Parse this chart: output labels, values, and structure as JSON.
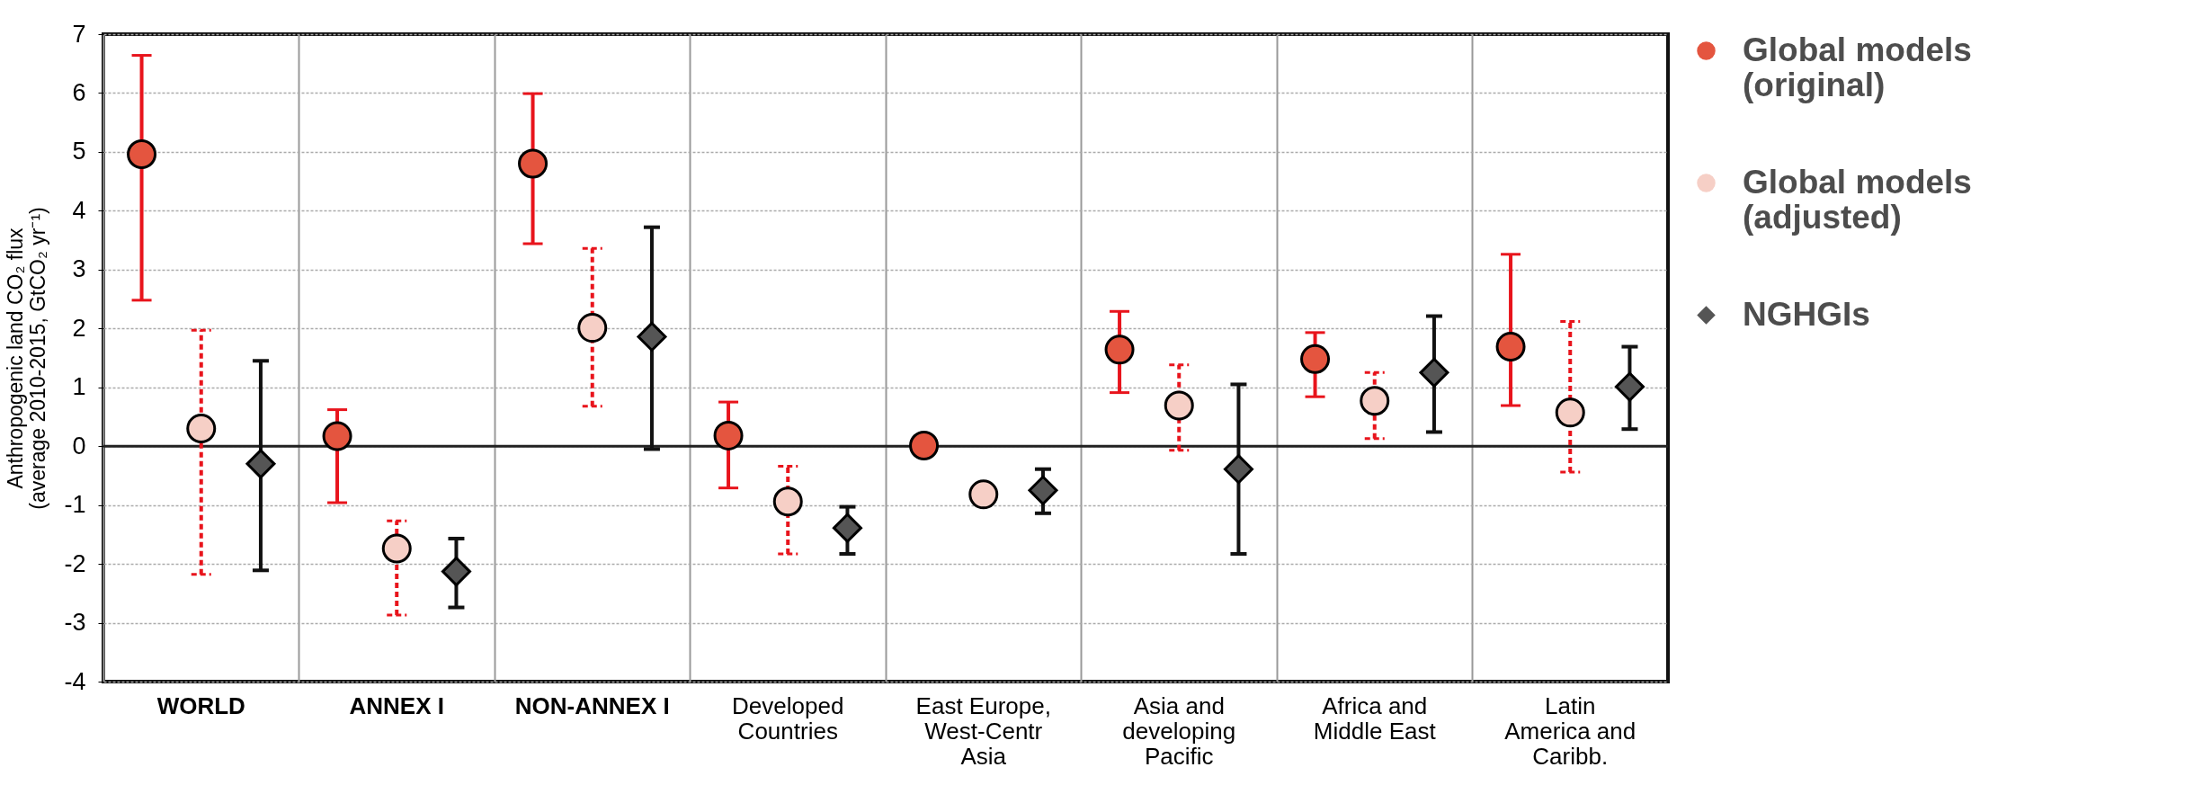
{
  "chart_data": {
    "type": "scatter",
    "ylabel": "Anthropogenic land CO₂ flux (average 2010-2015, GtCO₂ yr⁻¹)",
    "categories": [
      "WORLD",
      "ANNEX I",
      "NON-ANNEX I",
      "Developed Countries",
      "East Europe, West-Centr Asia",
      "Asia and developing Pacific",
      "Africa and Middle East",
      "Latin America and Caribb."
    ],
    "series": [
      {
        "name": "Global models (original)",
        "color": "#e4553f",
        "marker": "circle",
        "line_style": "solid",
        "values": [
          4.96,
          0.17,
          4.8,
          0.18,
          0.01,
          1.64,
          1.48,
          1.69
        ],
        "errors": [
          [
            2.48,
            6.64
          ],
          [
            -0.96,
            0.62
          ],
          [
            3.44,
            5.99
          ],
          [
            -0.71,
            0.75
          ],
          null,
          [
            0.91,
            2.29
          ],
          [
            0.84,
            1.93
          ],
          [
            0.69,
            3.26
          ]
        ]
      },
      {
        "name": "Global models (adjusted)",
        "color": "#f6cfc6",
        "marker": "circle",
        "line_style": "dashed",
        "values": [
          0.3,
          -1.74,
          2.01,
          -0.94,
          -0.82,
          0.69,
          0.77,
          0.57
        ],
        "errors": [
          [
            -2.18,
            1.97
          ],
          [
            -2.87,
            -1.27
          ],
          [
            0.68,
            3.36
          ],
          [
            -1.83,
            -0.34
          ],
          null,
          [
            -0.07,
            1.38
          ],
          [
            0.13,
            1.25
          ],
          [
            -0.44,
            2.12
          ]
        ]
      },
      {
        "name": "NGHGIs",
        "color": "#555555",
        "marker": "diamond",
        "line_style": "solid",
        "values": [
          -0.3,
          -2.13,
          1.86,
          -1.39,
          -0.75,
          -0.39,
          1.25,
          1.01
        ],
        "errors": [
          [
            -2.11,
            1.45
          ],
          [
            -2.74,
            -1.57
          ],
          [
            -0.05,
            3.72
          ],
          [
            -1.83,
            -1.03
          ],
          [
            -1.14,
            -0.39
          ],
          [
            -1.83,
            1.05
          ],
          [
            0.24,
            2.21
          ],
          [
            0.29,
            1.69
          ]
        ]
      }
    ],
    "ylim": [
      -4,
      7
    ],
    "yticks": [
      -4,
      -3,
      -2,
      -1,
      0,
      1,
      2,
      3,
      4,
      5,
      6,
      7
    ],
    "ref_lines": [
      {
        "axis": "y",
        "value": 0
      }
    ],
    "grid": true,
    "legend": "right"
  }
}
